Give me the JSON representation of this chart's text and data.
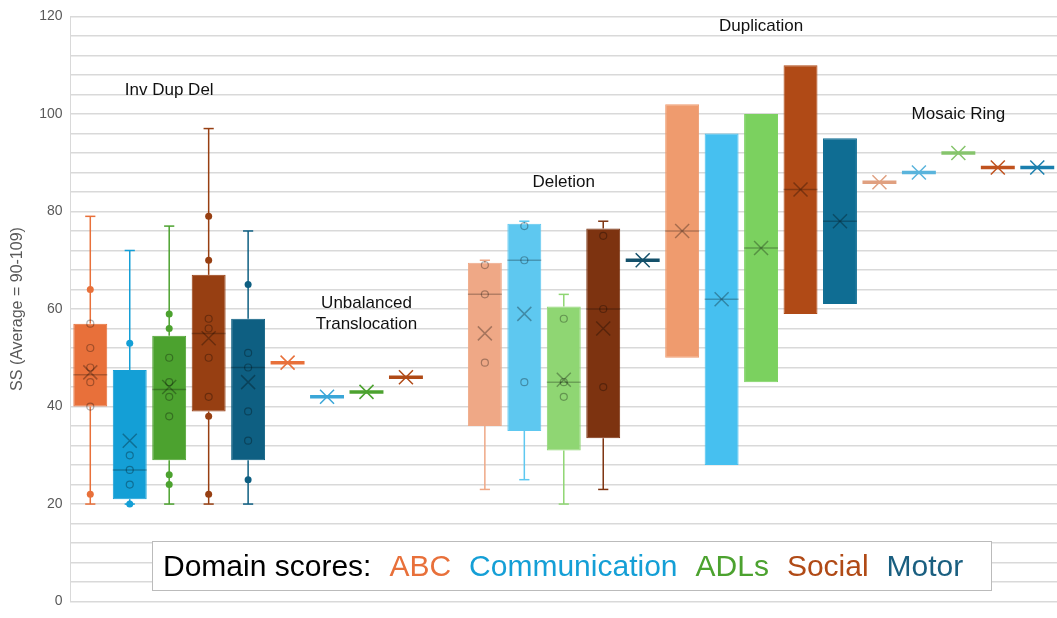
{
  "chart_data": {
    "type": "box",
    "ylabel": "SS (Average = 90-109)",
    "legend_title": "Domain scores:",
    "legend": "bottom",
    "grid": "y",
    "tick_labels": "y",
    "marker": "circle",
    "categories": [
      "Inv Dup Del",
      "Unbalanced Translocation",
      "Deletion",
      "Duplication",
      "Mosaic Ring"
    ],
    "ylim": [
      0,
      120
    ],
    "yticks": [
      0,
      {
        "value": 4,
        "label": null
      },
      {
        "value": 8,
        "label": null
      },
      {
        "value": 12,
        "label": null
      },
      {
        "value": 16,
        "label": null
      },
      20,
      {
        "value": 24,
        "label": null
      },
      {
        "value": 28,
        "label": null
      },
      {
        "value": 32,
        "label": null
      },
      {
        "value": 36,
        "label": null
      },
      40,
      {
        "value": 44,
        "label": null
      },
      {
        "value": 48,
        "label": null
      },
      {
        "value": 52,
        "label": null
      },
      {
        "value": 56,
        "label": null
      },
      60,
      {
        "value": 64,
        "label": null
      },
      {
        "value": 68,
        "label": null
      },
      {
        "value": 72,
        "label": null
      },
      {
        "value": 76,
        "label": null
      },
      80,
      {
        "value": 84,
        "label": null
      },
      {
        "value": 88,
        "label": null
      },
      {
        "value": 92,
        "label": null
      },
      {
        "value": 96,
        "label": null
      },
      100,
      {
        "value": 104,
        "label": null
      },
      {
        "value": 108,
        "label": null
      },
      {
        "value": 112,
        "label": null
      },
      {
        "value": 116,
        "label": null
      },
      120
    ],
    "series": [
      {
        "name": "ABC",
        "color": "#e8703a",
        "colors": [
          "#e8703a",
          "#e8703a",
          "#efa886",
          "#ef9b6e",
          "#e0a080"
        ],
        "boxes": [
          {
            "low": 20,
            "q1": 40,
            "median": 46.5,
            "q3": 57,
            "high": 79,
            "mean": 47,
            "outliers": [
              64,
              57,
              52,
              48,
              45,
              40,
              22
            ]
          },
          {
            "low": 49,
            "q1": 49,
            "median": 49,
            "q3": 49,
            "high": 49,
            "mean": 49
          },
          {
            "low": 23,
            "q1": 36,
            "median": 63,
            "q3": 69.5,
            "high": 70,
            "mean": 55,
            "outliers": [
              69,
              63,
              49
            ]
          },
          {
            "low": 50,
            "q1": 50,
            "median": 76,
            "q3": 102,
            "high": 102,
            "mean": 76
          },
          {
            "low": 86,
            "q1": 86,
            "median": 86,
            "q3": 86,
            "high": 86,
            "mean": 86
          }
        ]
      },
      {
        "name": "Communication",
        "color": "#149fd6",
        "colors": [
          "#149fd6",
          "#3aa6d8",
          "#5ec8f0",
          "#46c0f0",
          "#5ab4dc"
        ],
        "boxes": [
          {
            "low": 20,
            "q1": 21,
            "median": 27,
            "q3": 47.5,
            "high": 72,
            "mean": 33,
            "outliers": [
              53,
              30,
              27,
              24,
              20
            ]
          },
          {
            "low": 42,
            "q1": 42,
            "median": 42,
            "q3": 42,
            "high": 42,
            "mean": 42
          },
          {
            "low": 25,
            "q1": 35,
            "median": 70,
            "q3": 77.5,
            "high": 78,
            "mean": 59,
            "outliers": [
              77,
              70,
              45
            ]
          },
          {
            "low": 28,
            "q1": 28,
            "median": 62,
            "q3": 96,
            "high": 96,
            "mean": 62
          },
          {
            "low": 88,
            "q1": 88,
            "median": 88,
            "q3": 88,
            "high": 88,
            "mean": 88
          }
        ]
      },
      {
        "name": "ADLs",
        "color": "#4ca22f",
        "colors": [
          "#4ca22f",
          "#4ca22f",
          "#8fd673",
          "#7bd15f",
          "#86c46c"
        ],
        "boxes": [
          {
            "low": 20,
            "q1": 29,
            "median": 43.5,
            "q3": 54.5,
            "high": 77,
            "mean": 44,
            "outliers": [
              59,
              56,
              50,
              45,
              42,
              38,
              26,
              24
            ]
          },
          {
            "low": 43,
            "q1": 43,
            "median": 43,
            "q3": 43,
            "high": 43,
            "mean": 43
          },
          {
            "low": 20,
            "q1": 31,
            "median": 45,
            "q3": 60.5,
            "high": 63,
            "mean": 45.5,
            "outliers": [
              58,
              45,
              42
            ]
          },
          {
            "low": 45,
            "q1": 45,
            "median": 72.5,
            "q3": 100,
            "high": 100,
            "mean": 72.5
          },
          {
            "low": 92,
            "q1": 92,
            "median": 92,
            "q3": 92,
            "high": 92,
            "mean": 92
          }
        ]
      },
      {
        "name": "Social",
        "color": "#b04a16",
        "colors": [
          "#973f12",
          "#b04a16",
          "#7d3310",
          "#b04a16",
          "#c0521e"
        ],
        "boxes": [
          {
            "low": 20,
            "q1": 39,
            "median": 55,
            "q3": 67,
            "high": 97,
            "mean": 54,
            "outliers": [
              79,
              70,
              58,
              56,
              50,
              42,
              38,
              22
            ]
          },
          {
            "low": 46,
            "q1": 46,
            "median": 46,
            "q3": 46,
            "high": 46,
            "mean": 46
          },
          {
            "low": 23,
            "q1": 33.5,
            "median": 60,
            "q3": 76.5,
            "high": 78,
            "mean": 56,
            "outliers": [
              75,
              60,
              44
            ]
          },
          {
            "low": 59,
            "q1": 59,
            "median": 84.5,
            "q3": 110,
            "high": 110,
            "mean": 84.5
          },
          {
            "low": 89,
            "q1": 89,
            "median": 89,
            "q3": 89,
            "high": 89,
            "mean": 89
          }
        ]
      },
      {
        "name": "Motor",
        "color": "#1a5f80",
        "colors": [
          "#0e5f82",
          "#0e5f82",
          "#14506a",
          "#0f6d93",
          "#1a7fae"
        ],
        "boxes": [
          {
            "low": 20,
            "q1": 29,
            "median": 48,
            "q3": 58,
            "high": 76,
            "mean": 45,
            "outliers": [
              65,
              51,
              48,
              39,
              33,
              25
            ]
          },
          null,
          {
            "low": 70,
            "q1": 70,
            "median": 70,
            "q3": 70,
            "high": 70,
            "mean": 70
          },
          {
            "low": 61,
            "q1": 61,
            "median": 78,
            "q3": 95,
            "high": 95,
            "mean": 78
          },
          {
            "low": 89,
            "q1": 89,
            "median": 89,
            "q3": 89,
            "high": 89,
            "mean": 89
          }
        ]
      }
    ]
  }
}
